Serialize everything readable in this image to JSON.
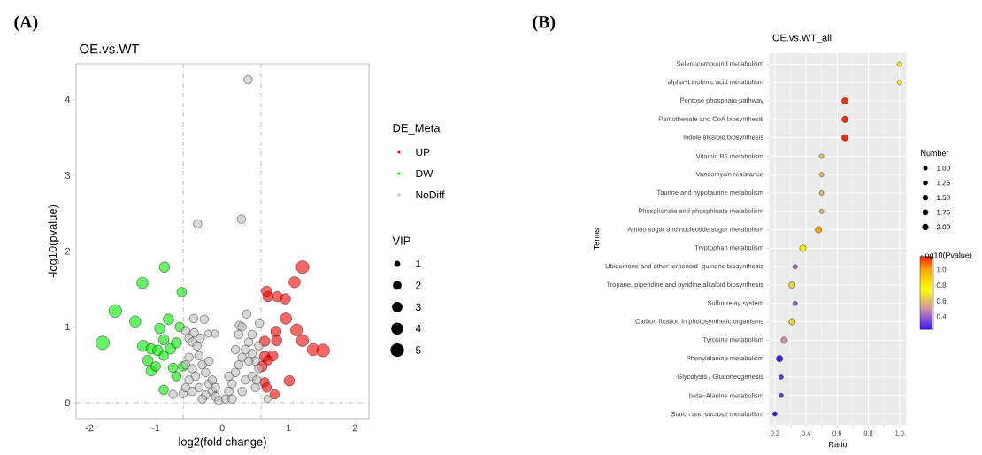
{
  "chart_data": [
    {
      "type": "bubble",
      "title": "OE.vs.WT",
      "xlabel": "log2(fold change)",
      "ylabel": "-log10(pvalue)",
      "legend_title": "DE_Meta",
      "annotations": [
        "(A)",
        "VIP"
      ],
      "xlim": [
        -2.2,
        2.21
      ],
      "ylim": [
        -0.21,
        4.47
      ],
      "xticks": [
        -2,
        -1,
        0,
        1,
        2
      ],
      "yticks": [
        0,
        1,
        2,
        3,
        4
      ],
      "legend": "right",
      "marker": "circle",
      "size_legend": [
        1,
        2,
        3,
        4,
        5
      ],
      "ref_lines": [
        {
          "axis": "x",
          "value": -0.585,
          "line_style": "dashed"
        },
        {
          "axis": "x",
          "value": 0.585,
          "line_style": "dashed"
        },
        {
          "axis": "y",
          "value": 0,
          "line_style": "dashed"
        }
      ],
      "series": [
        {
          "name": "UP",
          "color": "#ff0000",
          "x": [
            1.21,
            1.09,
            0.67,
            0.69,
            0.83,
            0.95,
            0.96,
            1.12,
            0.81,
            1.21,
            1.37,
            1.52,
            0.64,
            0.82,
            0.76,
            0.64,
            0.6,
            0.64,
            0.67,
            0.79,
            1.01,
            0.69
          ],
          "values": [
            1.79,
            1.59,
            1.47,
            1.4,
            1.4,
            1.37,
            1.11,
            0.96,
            0.94,
            0.82,
            0.7,
            0.69,
            0.81,
            0.82,
            0.62,
            0.61,
            0.48,
            0.27,
            0.2,
            0.11,
            0.29,
            0.56
          ],
          "sizes": [
            4.5,
            3.5,
            3,
            3,
            3,
            3,
            3.5,
            4,
            3,
            4,
            4,
            4.5,
            3,
            3,
            3,
            3,
            3,
            2.5,
            2.5,
            2.5,
            3,
            2.5
          ]
        },
        {
          "name": "DW",
          "color": "#00ee00",
          "x": [
            -1.8,
            -1.61,
            -1.2,
            -1.31,
            -0.87,
            -0.61,
            -1.19,
            -0.81,
            -0.94,
            -0.88,
            -1.07,
            -0.97,
            -0.78,
            -0.64,
            -0.69,
            -1.12,
            -1.07,
            -1,
            -0.74,
            -0.69,
            -0.88,
            -0.59,
            -0.88
          ],
          "values": [
            0.79,
            1.21,
            1.58,
            1.07,
            1.79,
            1.46,
            0.75,
            1.1,
            0.98,
            0.83,
            0.71,
            0.69,
            0.71,
            1,
            0.79,
            0.56,
            0.42,
            0.48,
            0.46,
            0.35,
            0.17,
            0.48,
            0.62
          ],
          "sizes": [
            5,
            4.5,
            3.5,
            3.5,
            3,
            2.5,
            3.5,
            3,
            3,
            3,
            3,
            3,
            3,
            2.5,
            3,
            3,
            3,
            2.5,
            2.5,
            2.5,
            2.5,
            2.5,
            2.5
          ]
        },
        {
          "name": "NoDiff",
          "color": "#bebebe",
          "x": [
            0.39,
            -0.37,
            0.29,
            0.37,
            0.56,
            -0.43,
            -0.27,
            0.26,
            -0.21,
            -0.11,
            -0.74,
            -0.59,
            0.68,
            -0.55,
            -0.5,
            -0.45,
            -0.38,
            -0.35,
            -0.5,
            -0.55,
            -0.45,
            -0.3,
            -0.25,
            -0.4,
            -0.5,
            -0.55,
            -0.45,
            -0.35,
            -0.2,
            -0.15,
            -0.25,
            -0.1,
            -0.05,
            -0.3,
            -0.15,
            -0.42,
            -0.33,
            -0.2,
            -0.1,
            0.05,
            0.1,
            0.15,
            0.2,
            0.25,
            0.3,
            0.35,
            0.4,
            0.45,
            0.5,
            0.55,
            0.45,
            0.35,
            0.5,
            0.3,
            0.15,
            0.25,
            0.3,
            0.4,
            0.55,
            0.2,
            0.1,
            0.45,
            0.52
          ],
          "values": [
            4.26,
            2.36,
            2.42,
            1.17,
            1.05,
            1.11,
            1.1,
            1.02,
            0.91,
            0.91,
            0.11,
            0.12,
            0.05,
            0.95,
            0.85,
            0.8,
            0.75,
            0.62,
            0.6,
            0.5,
            0.45,
            0.5,
            0.4,
            0.35,
            0.3,
            0.2,
            0.15,
            0.2,
            0.25,
            0.15,
            0.1,
            0.08,
            0.03,
            0.05,
            0.3,
            0.92,
            0.85,
            0.55,
            0.2,
            0.05,
            0.15,
            0.25,
            0.4,
            0.5,
            0.6,
            0.7,
            0.8,
            0.9,
            0.55,
            0.45,
            0.35,
            0.3,
            0.2,
            0.15,
            0.05,
            0.9,
            1,
            0.55,
            0.75,
            0.7,
            0.35,
            0.65,
            0.3
          ],
          "sizes": [
            2,
            2,
            2,
            2,
            2,
            2,
            2,
            2,
            1.5,
            1.5,
            2,
            2,
            1.5,
            2,
            2,
            2,
            2,
            2,
            2,
            2,
            2,
            2,
            2,
            2,
            2,
            2,
            2,
            2,
            2,
            2,
            2,
            2,
            2,
            2,
            2,
            2,
            2,
            2,
            2,
            2,
            2,
            2,
            2,
            2,
            2,
            2,
            2,
            2,
            2,
            2,
            2,
            2,
            2,
            2,
            2,
            2,
            2,
            2,
            2,
            2,
            2,
            2,
            2
          ]
        }
      ]
    },
    {
      "type": "bubble",
      "orientation": "horizontal",
      "title": "OE.vs.WT_all",
      "xlabel": "Ratio",
      "ylabel": "Terms",
      "legend_title": "Number",
      "clabel": "-log10(Pvalue)",
      "annotations": [
        "(B)"
      ],
      "categories": [
        "Selenocompound metabolism",
        "alpha−Linolenic acid metabolism",
        "Pentose phosphate pathway",
        "Pantothenate and CoA biosynthesis",
        "Indole alkaloid biosynthesis",
        "Vitamin B6 metabolism",
        "Vancomycin resistance",
        "Taurine and hypotaurine metabolism",
        "Phosphonate and phosphinate metabolism",
        "Amino sugar and nucleotide sugar metabolism",
        "Tryptophan metabolism",
        "Ubiquinone and other terpenoid−quinone biosynthesis",
        "Tropane, piperidine and pyridine alkaloid biosynthesis",
        "Sulfur relay system",
        "Carbon fixation in photosynthetic organisms",
        "Tyrosine metabolism",
        "Phenylalanine metabolism",
        "Glycolysis / Gluconeogenesis",
        "beta−Alanine metabolism",
        "Starch and sucrose metabolism"
      ],
      "values": [
        1,
        1,
        0.65,
        0.65,
        0.65,
        0.5,
        0.5,
        0.5,
        0.5,
        0.48,
        0.38,
        0.33,
        0.31,
        0.33,
        0.31,
        0.26,
        0.23,
        0.24,
        0.24,
        0.2
      ],
      "sizes": [
        1,
        1,
        2,
        2,
        2,
        1,
        1,
        1,
        1,
        2,
        2,
        1,
        2,
        1,
        2,
        2,
        2,
        1,
        1,
        1
      ],
      "cvalues": [
        0.7,
        0.7,
        1.15,
        1.15,
        1.15,
        0.6,
        0.6,
        0.6,
        0.6,
        1,
        0.75,
        0.4,
        0.65,
        0.4,
        0.65,
        0.5,
        0.25,
        0.3,
        0.3,
        0.25
      ],
      "clim": [
        0.23,
        1.17
      ],
      "cticks": [
        0.4,
        0.6,
        0.8,
        {
          "value": 1,
          "label": "1.0"
        }
      ],
      "xlim": [
        0.164,
        1.044
      ],
      "xticks": [
        0.2,
        0.4,
        0.6,
        0.8,
        {
          "value": 1,
          "label": "1.0"
        }
      ],
      "size_legend": [
        {
          "value": 1,
          "label": "1.00"
        },
        1.25,
        {
          "value": 1.5,
          "label": "1.50"
        },
        1.75,
        {
          "value": 2,
          "label": "2.00"
        }
      ],
      "grid": true,
      "marker": "circle"
    }
  ]
}
